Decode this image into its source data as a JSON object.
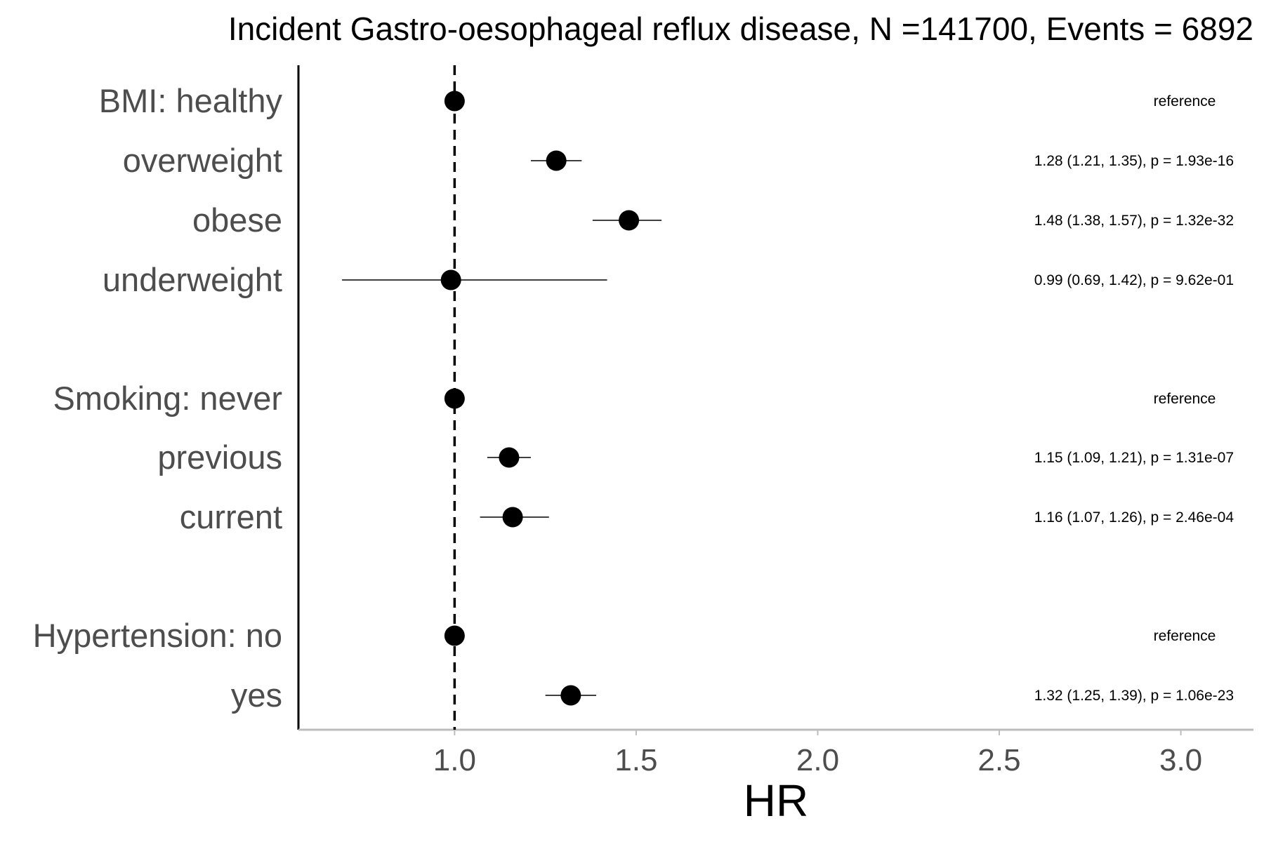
{
  "chart_data": {
    "type": "forest",
    "title": "Incident Gastro-oesophageal reflux disease, N =141700, Events = 6892",
    "xlabel": "HR",
    "xlim": [
      0.57,
      3.2
    ],
    "xticks": [
      1.0,
      1.5,
      2.0,
      2.5,
      3.0
    ],
    "xtick_labels": [
      "1.0",
      "1.5",
      "2.0",
      "2.5",
      "3.0"
    ],
    "reference_line": 1.0,
    "colors": {
      "point": "#000000",
      "reference_line": "#000000",
      "label_text": "#4d4d4d",
      "x_axis": "#bdbdbd"
    },
    "rows": [
      {
        "label": "BMI: healthy",
        "hr": 1.0,
        "lower": 1.0,
        "upper": 1.0,
        "annotation": "reference"
      },
      {
        "label": "overweight",
        "hr": 1.28,
        "lower": 1.21,
        "upper": 1.35,
        "annotation": "1.28 (1.21, 1.35), p = 1.93e-16"
      },
      {
        "label": "obese",
        "hr": 1.48,
        "lower": 1.38,
        "upper": 1.57,
        "annotation": "1.48 (1.38, 1.57), p = 1.32e-32"
      },
      {
        "label": "underweight",
        "hr": 0.99,
        "lower": 0.69,
        "upper": 1.42,
        "annotation": "0.99 (0.69, 1.42), p = 9.62e-01"
      },
      {
        "label": "Smoking: never",
        "hr": 1.0,
        "lower": 1.0,
        "upper": 1.0,
        "annotation": "reference"
      },
      {
        "label": "previous",
        "hr": 1.15,
        "lower": 1.09,
        "upper": 1.21,
        "annotation": "1.15 (1.09, 1.21), p = 1.31e-07"
      },
      {
        "label": "current",
        "hr": 1.16,
        "lower": 1.07,
        "upper": 1.26,
        "annotation": "1.16 (1.07, 1.26), p = 2.46e-04"
      },
      {
        "label": "Hypertension: no",
        "hr": 1.0,
        "lower": 1.0,
        "upper": 1.0,
        "annotation": "reference"
      },
      {
        "label": "yes",
        "hr": 1.32,
        "lower": 1.25,
        "upper": 1.39,
        "annotation": "1.32 (1.25, 1.39), p = 1.06e-23"
      }
    ]
  }
}
